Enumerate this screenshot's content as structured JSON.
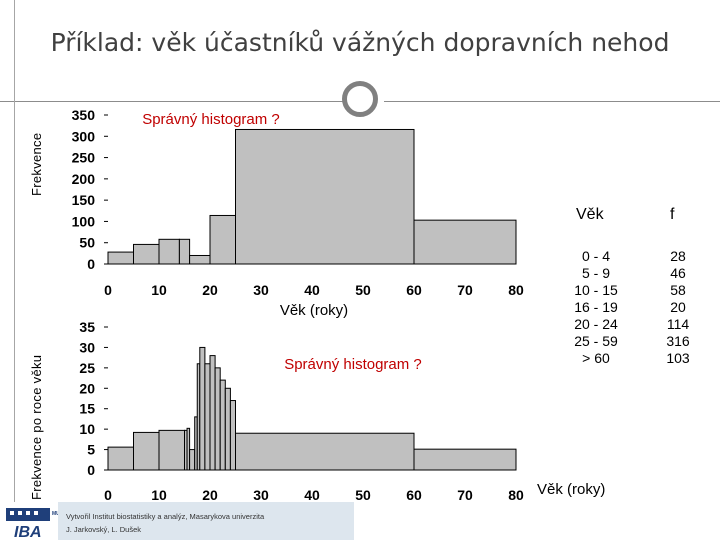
{
  "slide": {
    "title": "Příklad: věk účastníků vážných dopravních nehod"
  },
  "charts": {
    "top": {
      "annotation": "Správný histogram ?",
      "ylabel": "Frekvence",
      "xlabel": "Věk (roky)"
    },
    "bottom": {
      "annotation": "Správný histogram ?",
      "ylabel": "Frekvence po roce věku",
      "xlabel": "Věk (roky)"
    }
  },
  "table": {
    "header_age": "Věk",
    "header_f": "f",
    "rows": [
      {
        "age": "0 - 4",
        "f": "28"
      },
      {
        "age": "5 - 9",
        "f": "46"
      },
      {
        "age": "10 - 15",
        "f": "58"
      },
      {
        "age": "16 - 19",
        "f": "20"
      },
      {
        "age": "20 - 24",
        "f": "114"
      },
      {
        "age": "25 - 59",
        "f": "316"
      },
      {
        "age": "> 60",
        "f": "103"
      }
    ]
  },
  "footer": {
    "credit_line1": "Vytvořil Institut biostatistiky a analýz, Masarykova univerzita",
    "credit_line2": "J. Jarkovský, L. Dušek",
    "logo_text": "IBA",
    "logo_badge": "MU"
  },
  "colors": {
    "bar_fill": "#c0c0c0",
    "bar_stroke": "#000000",
    "logo_blue": "#1f3f7a"
  },
  "chart_data": [
    {
      "type": "bar",
      "title": "",
      "xlabel": "Věk (roky)",
      "ylabel": "Frekvence",
      "xlim": [
        0,
        80
      ],
      "ylim": [
        0,
        350
      ],
      "xticks": [
        0,
        10,
        20,
        30,
        40,
        50,
        60,
        70,
        80
      ],
      "yticks": [
        0,
        50,
        100,
        150,
        200,
        250,
        300,
        350
      ],
      "bins": [
        {
          "x0": 0,
          "x1": 5,
          "value": 28
        },
        {
          "x0": 5,
          "x1": 10,
          "value": 46
        },
        {
          "x0": 10,
          "x1": 14,
          "value": 58
        },
        {
          "x0": 14,
          "x1": 16,
          "value": 58
        },
        {
          "x0": 16,
          "x1": 20,
          "value": 20
        },
        {
          "x0": 20,
          "x1": 25,
          "value": 114
        },
        {
          "x0": 25,
          "x1": 60,
          "value": 316
        },
        {
          "x0": 60,
          "x1": 80,
          "value": 103
        }
      ]
    },
    {
      "type": "bar",
      "title": "",
      "xlabel": "Věk (roky)",
      "ylabel": "Frekvence po roce věku",
      "xlim": [
        0,
        80
      ],
      "ylim": [
        0,
        35
      ],
      "xticks": [
        0,
        10,
        20,
        30,
        40,
        50,
        60,
        70,
        80
      ],
      "yticks": [
        0,
        5,
        10,
        15,
        20,
        25,
        30,
        35
      ],
      "bins": [
        {
          "x0": 0,
          "x1": 5,
          "value": 5.6
        },
        {
          "x0": 5,
          "x1": 10,
          "value": 9.2
        },
        {
          "x0": 10,
          "x1": 15,
          "value": 9.7
        },
        {
          "x0": 15,
          "x1": 15.5,
          "value": 9.7
        },
        {
          "x0": 15.5,
          "x1": 16,
          "value": 10.2
        },
        {
          "x0": 16,
          "x1": 17,
          "value": 5
        },
        {
          "x0": 17,
          "x1": 17.5,
          "value": 13
        },
        {
          "x0": 17.5,
          "x1": 18,
          "value": 26
        },
        {
          "x0": 18,
          "x1": 19,
          "value": 30
        },
        {
          "x0": 19,
          "x1": 20,
          "value": 26
        },
        {
          "x0": 20,
          "x1": 21,
          "value": 28
        },
        {
          "x0": 21,
          "x1": 22,
          "value": 25
        },
        {
          "x0": 22,
          "x1": 23,
          "value": 22
        },
        {
          "x0": 23,
          "x1": 24,
          "value": 20
        },
        {
          "x0": 24,
          "x1": 25,
          "value": 17
        },
        {
          "x0": 25,
          "x1": 60,
          "value": 9
        },
        {
          "x0": 60,
          "x1": 80,
          "value": 5.1
        }
      ]
    }
  ]
}
